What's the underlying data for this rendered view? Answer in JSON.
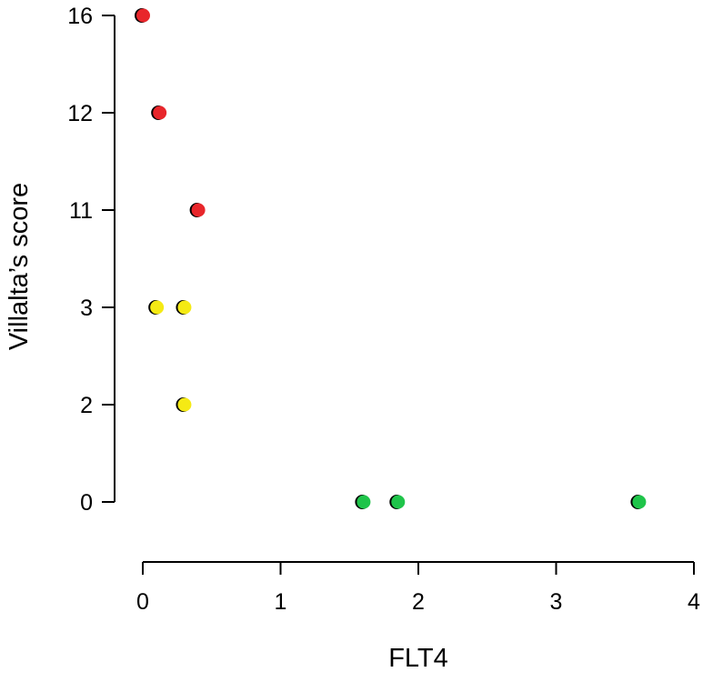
{
  "chart_data": {
    "type": "scatter",
    "xlabel": "FLT4",
    "ylabel": "Villalta’s score",
    "x_ticks": [
      "0",
      "1",
      "2",
      "3",
      "4"
    ],
    "xlim": [
      0,
      4
    ],
    "y_ticks": [
      "0",
      "2",
      "3",
      "11",
      "12",
      "16"
    ],
    "y_scale": "categorical (equally spaced levels)",
    "grid": false,
    "legend": "none",
    "series": [
      {
        "color": "#e8262b",
        "points": [
          {
            "x": 0.0,
            "y": "16"
          },
          {
            "x": 0.12,
            "y": "12"
          },
          {
            "x": 0.4,
            "y": "11"
          }
        ]
      },
      {
        "color": "#f5ea14",
        "points": [
          {
            "x": 0.1,
            "y": "3"
          },
          {
            "x": 0.3,
            "y": "3"
          },
          {
            "x": 0.3,
            "y": "2"
          }
        ]
      },
      {
        "color": "#1fc44a",
        "points": [
          {
            "x": 1.6,
            "y": "0"
          },
          {
            "x": 1.85,
            "y": "0"
          },
          {
            "x": 3.6,
            "y": "0"
          }
        ]
      }
    ]
  }
}
